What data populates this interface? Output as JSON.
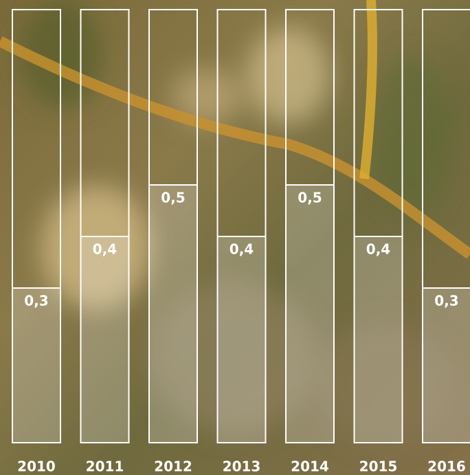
{
  "chart_data": {
    "type": "bar",
    "categories": [
      "2010",
      "2011",
      "2012",
      "2013",
      "2014",
      "2015",
      "2016"
    ],
    "values": [
      0.3,
      0.4,
      0.5,
      0.4,
      0.5,
      0.4,
      0.3
    ],
    "value_labels": [
      "0,3",
      "0,4",
      "0,5",
      "0,4",
      "0,5",
      "0,4",
      "0,3"
    ],
    "color": "#ffffff",
    "ylim": [
      0,
      0.84
    ]
  }
}
